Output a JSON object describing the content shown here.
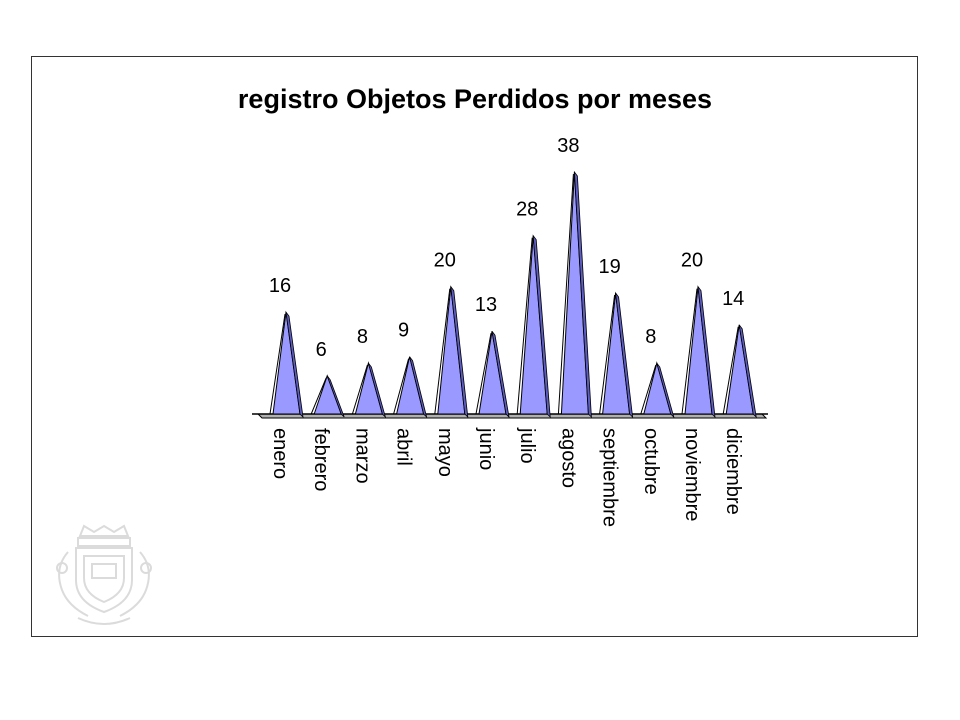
{
  "chart_data": {
    "type": "area",
    "style": "triangle-peaks",
    "title": "registro Objetos Perdidos por meses",
    "xlabel": "",
    "ylabel": "",
    "ylim": [
      0,
      38
    ],
    "grid": false,
    "legend": "none",
    "categories": [
      "enero",
      "febrero",
      "marzo",
      "abril",
      "mayo",
      "junio",
      "julio",
      "agosto",
      "septiembre",
      "octubre",
      "noviembre",
      "diciembre"
    ],
    "values": [
      16,
      6,
      8,
      9,
      20,
      13,
      28,
      38,
      19,
      8,
      20,
      14
    ],
    "colors": {
      "fill": "#9999ff",
      "side_shade": "#5e5ec2",
      "outline": "#000000",
      "floor": "#b0b0b0",
      "text": "#000000"
    }
  },
  "watermark": {
    "icon": "coat-of-arms-seal-icon"
  }
}
